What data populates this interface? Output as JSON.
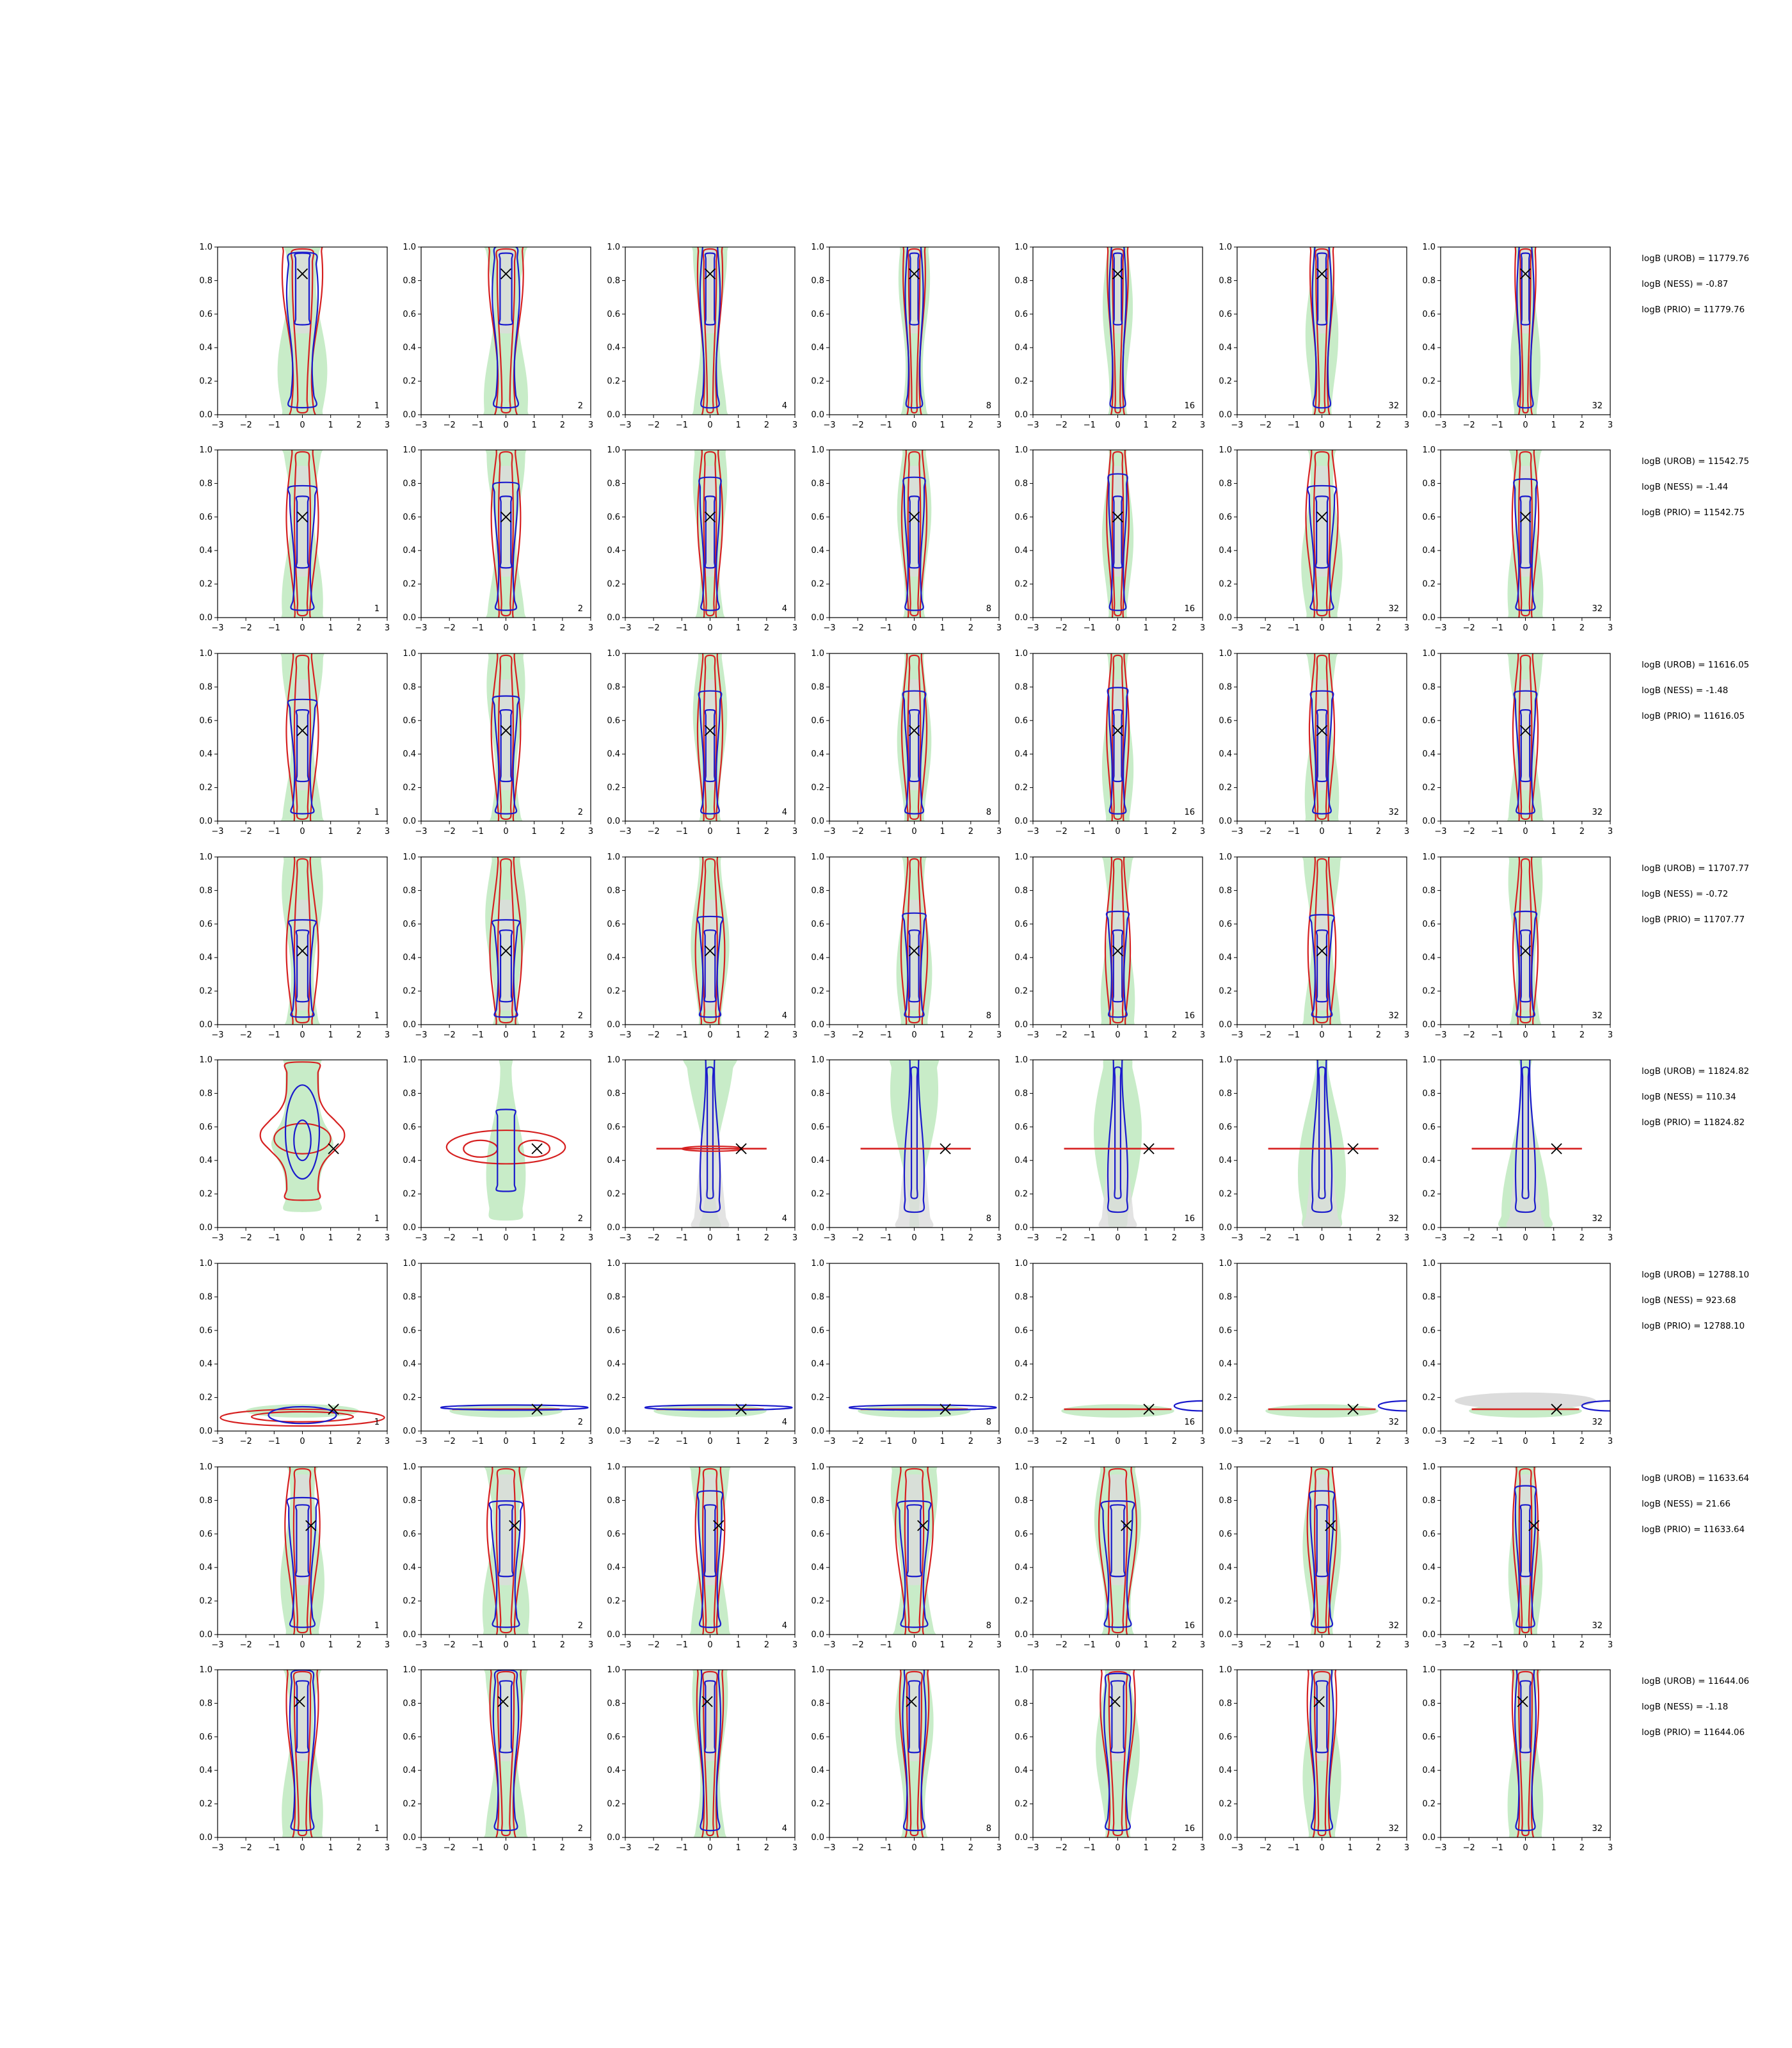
{
  "chart_data": {
    "type": "contour",
    "layout": {
      "rows": 8,
      "cols": 7
    },
    "xlim": [
      -3,
      3
    ],
    "ylim": [
      0.0,
      1.0
    ],
    "xticks": [
      "−3",
      "−2",
      "−1",
      "0",
      "1",
      "2",
      "3"
    ],
    "yticks": [
      "0.0",
      "0.2",
      "0.4",
      "0.6",
      "0.8",
      "1.0"
    ],
    "panel_labels": [
      "1",
      "2",
      "4",
      "8",
      "16",
      "32",
      "32"
    ],
    "colors": {
      "green_fill": "#c8ecc8",
      "grey_fill": "#dcdcdc",
      "red_line": "#d62020",
      "blue_line": "#1a1acc",
      "marker": "#000000"
    },
    "rows": [
      {
        "marker": {
          "x": 0.0,
          "y": 0.84
        },
        "kind": "vertical",
        "widths": [
          1.0,
          0.8,
          0.45,
          0.35,
          0.3,
          0.4,
          0.3
        ],
        "logB": [
          "logB (UROB) = 11779.76",
          "logB (NESS) = -0.87",
          "logB (PRIO) = 11779.76"
        ]
      },
      {
        "marker": {
          "x": 0.0,
          "y": 0.6
        },
        "kind": "vertical",
        "widths": [
          0.7,
          0.6,
          0.45,
          0.45,
          0.35,
          0.7,
          0.5
        ],
        "logB": [
          "logB (UROB) = 11542.75",
          "logB (NESS) = -1.44",
          "logB (PRIO) = 11542.75"
        ]
      },
      {
        "marker": {
          "x": 0.0,
          "y": 0.54
        },
        "kind": "vertical",
        "widths": [
          0.7,
          0.6,
          0.45,
          0.45,
          0.35,
          0.45,
          0.45
        ],
        "logB": [
          "logB (UROB) = 11616.05",
          "logB (NESS) = -1.48",
          "logB (PRIO) = 11616.05"
        ]
      },
      {
        "marker": {
          "x": 0.0,
          "y": 0.44
        },
        "kind": "vertical",
        "widths": [
          0.7,
          0.7,
          0.6,
          0.5,
          0.45,
          0.55,
          0.45
        ],
        "logB": [
          "logB (UROB) = 11707.77",
          "logB (NESS) = -0.72",
          "logB (PRIO) = 11707.77"
        ]
      },
      {
        "marker": {
          "x": 1.1,
          "y": 0.47
        },
        "kind": "cross",
        "widths": [
          1.0,
          0.9,
          0.6,
          0.6,
          0.6,
          0.6,
          0.5
        ],
        "logB": [
          "logB (UROB) = 11824.82",
          "logB (NESS) = 110.34",
          "logB (PRIO) = 11824.82"
        ]
      },
      {
        "marker": {
          "x": 1.1,
          "y": 0.13
        },
        "kind": "flat",
        "widths": [
          1.0,
          0.9,
          0.9,
          0.9,
          0.9,
          0.9,
          0.9
        ],
        "logB": [
          "logB (UROB) = 12788.10",
          "logB (NESS) = 923.68",
          "logB (PRIO) = 12788.10"
        ]
      },
      {
        "marker": {
          "x": 0.3,
          "y": 0.65
        },
        "kind": "vertical",
        "widths": [
          0.8,
          0.9,
          0.6,
          0.9,
          0.9,
          0.6,
          0.45
        ],
        "logB": [
          "logB (UROB) = 11633.64",
          "logB (NESS) = 21.66",
          "logB (PRIO) = 11633.64"
        ]
      },
      {
        "marker": {
          "x": -0.1,
          "y": 0.81
        },
        "kind": "vertical",
        "widths": [
          0.7,
          0.7,
          0.5,
          0.6,
          0.8,
          0.6,
          0.5
        ],
        "logB": [
          "logB (UROB) = 11644.06",
          "logB (NESS) = -1.18",
          "logB (PRIO) = 11644.06"
        ]
      }
    ]
  }
}
